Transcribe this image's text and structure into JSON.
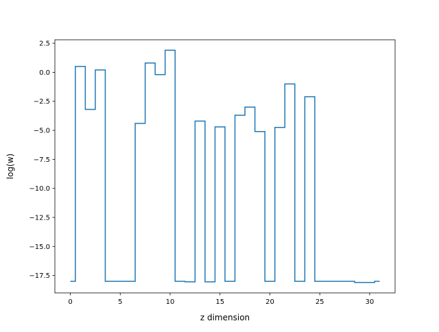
{
  "chart_data": {
    "type": "line",
    "drawstyle": "steps-mid",
    "title": "",
    "xlabel": "z dimension",
    "ylabel": "log(w)",
    "xlim": [
      -1.55,
      32.55
    ],
    "ylim": [
      -19.0,
      2.8
    ],
    "xticks": [
      0,
      5,
      10,
      15,
      20,
      25,
      30
    ],
    "xtick_labels": [
      "0",
      "5",
      "10",
      "15",
      "20",
      "25",
      "30"
    ],
    "yticks": [
      2.5,
      0.0,
      -2.5,
      -5.0,
      -7.5,
      -10.0,
      -12.5,
      -15.0,
      -17.5
    ],
    "ytick_labels": [
      "2.5",
      "0.0",
      "−2.5",
      "−5.0",
      "−7.5",
      "−10.0",
      "−12.5",
      "−15.0",
      "−17.5"
    ],
    "grid": false,
    "legend": "none",
    "series": [
      {
        "color": "#1f77b4",
        "x": [
          0,
          1,
          2,
          3,
          4,
          5,
          6,
          7,
          8,
          9,
          10,
          11,
          12,
          13,
          14,
          15,
          16,
          17,
          18,
          19,
          20,
          21,
          22,
          23,
          24,
          25,
          26,
          27,
          28,
          29,
          30,
          31
        ],
        "values": [
          -18.0,
          0.5,
          -3.2,
          0.2,
          -18.0,
          -18.0,
          -18.0,
          -4.4,
          0.8,
          -0.2,
          1.9,
          -18.0,
          -18.05,
          -4.2,
          -18.05,
          -4.7,
          -18.0,
          -3.7,
          -3.0,
          -5.1,
          -18.0,
          -4.75,
          -1.0,
          -18.0,
          -2.1,
          -18.0,
          -18.0,
          -18.0,
          -18.0,
          -18.1,
          -18.1,
          -18.0
        ]
      }
    ]
  }
}
